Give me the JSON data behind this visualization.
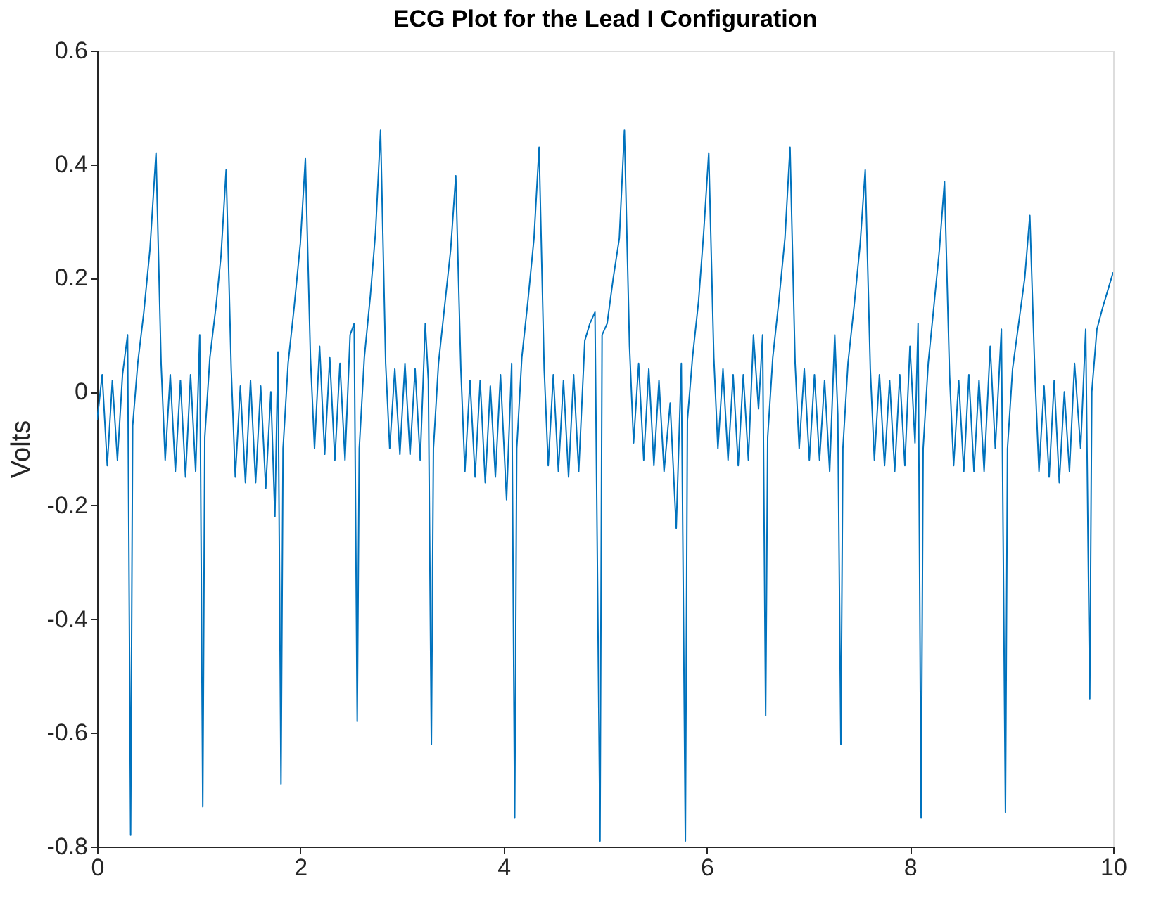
{
  "chart_data": {
    "type": "line",
    "title": "ECG Plot for the Lead I Configuration",
    "ylabel": "Volts",
    "x": [
      0.0,
      0.05,
      0.1,
      0.15,
      0.2,
      0.25,
      0.3,
      0.33,
      0.35,
      0.4,
      0.46,
      0.52,
      0.58,
      0.63,
      0.67,
      0.72,
      0.77,
      0.82,
      0.87,
      0.92,
      0.97,
      1.01,
      1.04,
      1.06,
      1.11,
      1.17,
      1.22,
      1.27,
      1.32,
      1.36,
      1.41,
      1.46,
      1.51,
      1.56,
      1.61,
      1.66,
      1.71,
      1.75,
      1.78,
      1.81,
      1.83,
      1.88,
      1.94,
      2.0,
      2.05,
      2.1,
      2.14,
      2.19,
      2.24,
      2.29,
      2.34,
      2.39,
      2.44,
      2.49,
      2.53,
      2.56,
      2.58,
      2.63,
      2.69,
      2.74,
      2.79,
      2.84,
      2.88,
      2.93,
      2.98,
      3.03,
      3.08,
      3.13,
      3.18,
      3.23,
      3.26,
      3.29,
      3.31,
      3.36,
      3.42,
      3.48,
      3.53,
      3.58,
      3.62,
      3.67,
      3.72,
      3.77,
      3.82,
      3.87,
      3.92,
      3.97,
      4.03,
      4.08,
      4.11,
      4.13,
      4.18,
      4.24,
      4.3,
      4.35,
      4.4,
      4.44,
      4.49,
      4.54,
      4.59,
      4.64,
      4.69,
      4.74,
      4.8,
      4.85,
      4.9,
      4.95,
      4.97,
      5.02,
      5.08,
      5.14,
      5.19,
      5.24,
      5.28,
      5.33,
      5.38,
      5.43,
      5.48,
      5.53,
      5.58,
      5.64,
      5.7,
      5.75,
      5.79,
      5.81,
      5.86,
      5.92,
      5.97,
      6.02,
      6.07,
      6.11,
      6.16,
      6.21,
      6.26,
      6.31,
      6.36,
      6.41,
      6.46,
      6.51,
      6.55,
      6.58,
      6.6,
      6.65,
      6.71,
      6.77,
      6.82,
      6.87,
      6.91,
      6.96,
      7.01,
      7.06,
      7.11,
      7.16,
      7.21,
      7.26,
      7.29,
      7.32,
      7.34,
      7.39,
      7.45,
      7.51,
      7.56,
      7.61,
      7.65,
      7.7,
      7.75,
      7.8,
      7.85,
      7.9,
      7.95,
      8.0,
      8.05,
      8.08,
      8.11,
      8.13,
      8.18,
      8.23,
      8.29,
      8.34,
      8.39,
      8.43,
      8.48,
      8.53,
      8.58,
      8.63,
      8.68,
      8.73,
      8.79,
      8.84,
      8.9,
      8.94,
      8.96,
      9.01,
      9.07,
      9.13,
      9.18,
      9.23,
      9.27,
      9.32,
      9.37,
      9.42,
      9.47,
      9.52,
      9.57,
      9.62,
      9.68,
      9.73,
      9.77,
      9.79,
      9.84,
      9.9,
      9.95,
      10.0
    ],
    "series": [
      {
        "color": "#0072bd",
        "values": [
          -0.05,
          0.03,
          -0.13,
          0.02,
          -0.12,
          0.03,
          0.1,
          -0.78,
          -0.06,
          0.05,
          0.14,
          0.25,
          0.42,
          0.05,
          -0.12,
          0.03,
          -0.14,
          0.02,
          -0.15,
          0.03,
          -0.14,
          0.1,
          -0.73,
          -0.08,
          0.06,
          0.15,
          0.24,
          0.39,
          0.04,
          -0.15,
          0.01,
          -0.16,
          0.02,
          -0.16,
          0.01,
          -0.17,
          0.0,
          -0.22,
          0.07,
          -0.69,
          -0.1,
          0.05,
          0.15,
          0.26,
          0.41,
          0.06,
          -0.1,
          0.08,
          -0.11,
          0.06,
          -0.12,
          0.05,
          -0.12,
          0.1,
          0.12,
          -0.58,
          -0.1,
          0.06,
          0.17,
          0.28,
          0.46,
          0.05,
          -0.1,
          0.04,
          -0.11,
          0.05,
          -0.11,
          0.04,
          -0.12,
          0.12,
          0.02,
          -0.62,
          -0.1,
          0.05,
          0.15,
          0.25,
          0.38,
          0.04,
          -0.14,
          0.02,
          -0.15,
          0.02,
          -0.16,
          0.01,
          -0.15,
          0.03,
          -0.19,
          0.05,
          -0.75,
          -0.1,
          0.06,
          0.16,
          0.27,
          0.43,
          0.04,
          -0.13,
          0.03,
          -0.14,
          0.02,
          -0.15,
          0.03,
          -0.14,
          0.09,
          0.12,
          0.14,
          -0.79,
          0.1,
          0.12,
          0.2,
          0.27,
          0.46,
          0.08,
          -0.09,
          0.05,
          -0.12,
          0.04,
          -0.13,
          0.02,
          -0.14,
          -0.02,
          -0.24,
          0.05,
          -0.79,
          -0.05,
          0.06,
          0.16,
          0.28,
          0.42,
          0.06,
          -0.1,
          0.04,
          -0.12,
          0.03,
          -0.13,
          0.03,
          -0.12,
          0.1,
          -0.03,
          0.1,
          -0.57,
          -0.08,
          0.06,
          0.16,
          0.27,
          0.43,
          0.05,
          -0.1,
          0.04,
          -0.12,
          0.03,
          -0.12,
          0.02,
          -0.14,
          0.1,
          -0.04,
          -0.62,
          -0.1,
          0.05,
          0.15,
          0.26,
          0.39,
          0.04,
          -0.12,
          0.03,
          -0.13,
          0.02,
          -0.14,
          0.03,
          -0.13,
          0.08,
          -0.09,
          0.12,
          -0.75,
          -0.1,
          0.05,
          0.14,
          0.25,
          0.37,
          0.03,
          -0.13,
          0.02,
          -0.14,
          0.03,
          -0.14,
          0.02,
          -0.14,
          0.08,
          -0.1,
          0.11,
          -0.74,
          -0.1,
          0.04,
          0.12,
          0.2,
          0.31,
          0.03,
          -0.14,
          0.01,
          -0.15,
          0.02,
          -0.16,
          0.0,
          -0.14,
          0.05,
          -0.1,
          0.11,
          -0.54,
          0.0,
          0.11,
          0.15,
          0.18,
          0.21
        ]
      }
    ],
    "xlim": [
      0,
      10
    ],
    "xticks": [
      0,
      2,
      4,
      6,
      8,
      10
    ],
    "ylim": [
      -0.8,
      0.6
    ],
    "yticks": [
      -0.8,
      -0.6,
      -0.4,
      -0.2,
      0,
      0.2,
      0.4,
      0.6
    ],
    "grid": false,
    "marker": "none",
    "line_style": "solid"
  }
}
